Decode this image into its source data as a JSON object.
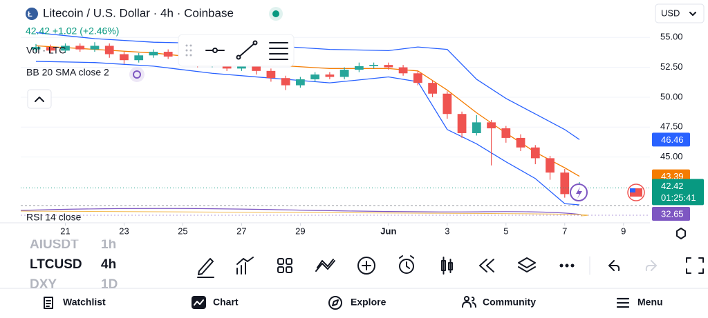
{
  "header": {
    "title": "Litecoin / U.S. Dollar · 4h · Coinbase",
    "quote": "42.42 +1.02 (+2.46%)",
    "currency": "USD"
  },
  "indicators": [
    "Vol · LTC",
    "BB 20 SMA close 2",
    "RSI 14 close"
  ],
  "chart_data": {
    "type": "candlestick",
    "x": [
      0,
      0.5,
      1,
      1.5,
      2,
      2.5,
      3,
      3.5,
      4,
      4.5,
      5,
      5.5,
      6,
      6.5,
      7,
      7.5,
      8,
      8.5,
      9,
      9.5,
      10,
      10.5,
      11,
      11.5,
      12,
      12.5,
      13,
      13.5,
      14,
      14.5,
      15,
      15.5,
      16,
      16.5,
      17,
      17.5,
      18,
      18.5
    ],
    "open": [
      54.0,
      54.2,
      53.9,
      54.3,
      54.0,
      54.3,
      53.6,
      53.1,
      53.5,
      53.8,
      53.4,
      53.3,
      52.7,
      52.8,
      52.4,
      52.6,
      52.2,
      51.6,
      51.0,
      51.5,
      51.9,
      51.7,
      52.3,
      52.6,
      52.7,
      52.5,
      52.0,
      51.2,
      50.3,
      48.6,
      47.0,
      47.9,
      47.4,
      46.6,
      45.8,
      44.9,
      43.7,
      41.9
    ],
    "high": [
      54.45,
      54.4,
      54.5,
      54.5,
      54.6,
      54.5,
      53.8,
      53.7,
      54.0,
      54.0,
      53.6,
      53.5,
      53.0,
      53.0,
      52.8,
      52.8,
      52.4,
      51.8,
      51.7,
      52.1,
      52.1,
      52.5,
      52.9,
      52.9,
      52.9,
      52.7,
      52.2,
      51.4,
      50.5,
      48.8,
      48.5,
      48.1,
      47.6,
      46.9,
      46.0,
      45.1,
      44.0,
      42.9
    ],
    "low": [
      53.8,
      53.7,
      53.7,
      53.8,
      53.8,
      53.3,
      52.8,
      52.9,
      53.3,
      53.2,
      53.0,
      52.5,
      52.5,
      52.2,
      52.2,
      51.9,
      51.3,
      50.6,
      50.8,
      51.3,
      51.5,
      51.5,
      52.1,
      52.4,
      52.3,
      51.8,
      51.0,
      50.0,
      48.2,
      46.6,
      46.8,
      44.3,
      46.2,
      45.5,
      44.4,
      43.1,
      41.6,
      41.7
    ],
    "close": [
      54.2,
      53.9,
      54.3,
      54.0,
      54.3,
      53.6,
      53.1,
      53.5,
      53.8,
      53.4,
      53.3,
      52.7,
      52.8,
      52.4,
      52.6,
      52.2,
      51.6,
      51.0,
      51.5,
      51.9,
      51.7,
      52.3,
      52.6,
      52.7,
      52.5,
      52.0,
      51.2,
      50.3,
      48.6,
      47.0,
      47.9,
      47.4,
      46.6,
      45.8,
      44.9,
      43.7,
      41.9,
      42.42
    ],
    "up_color": "#26a69a",
    "down_color": "#ef5350",
    "bands_x": [
      0,
      2,
      4,
      6,
      8,
      10,
      12,
      13,
      14,
      15,
      16,
      17,
      18,
      18.5
    ],
    "bands": [
      {
        "color": "#2962ff",
        "values": [
          55.4,
          54.9,
          54.6,
          54.5,
          54.3,
          54.0,
          53.9,
          54.2,
          54.0,
          51.5,
          49.9,
          48.6,
          47.3,
          46.46
        ]
      },
      {
        "color": "#f57c00",
        "values": [
          54.3,
          54.0,
          53.7,
          53.2,
          52.7,
          52.4,
          52.4,
          52.2,
          50.6,
          48.7,
          47.0,
          45.4,
          44.1,
          43.39
        ]
      },
      {
        "color": "#2962ff",
        "values": [
          53.0,
          52.9,
          52.6,
          52.0,
          51.6,
          51.2,
          51.7,
          51.3,
          47.3,
          46.1,
          44.6,
          43.2,
          41.1,
          41.0
        ]
      }
    ],
    "xlim": [
      0,
      20.9
    ],
    "ylim": [
      41,
      56.4
    ],
    "xticks": [
      {
        "value": 1,
        "label": "21"
      },
      {
        "value": 3,
        "label": "23"
      },
      {
        "value": 5,
        "label": "25"
      },
      {
        "value": 7,
        "label": "27"
      },
      {
        "value": 9,
        "label": "29"
      },
      {
        "value": 12,
        "label": "Jun"
      },
      {
        "value": 14,
        "label": "3"
      },
      {
        "value": 16,
        "label": "5"
      },
      {
        "value": 18,
        "label": "7"
      },
      {
        "value": 20,
        "label": "9"
      }
    ],
    "yticks": [
      {
        "value": 45,
        "label": "45.00"
      },
      {
        "value": 47.5,
        "label": "47.50"
      },
      {
        "value": 50,
        "label": "50.00"
      },
      {
        "value": 52.5,
        "label": "52.50"
      },
      {
        "value": 55,
        "label": "55.00"
      }
    ],
    "price_labels": [
      {
        "value": 46.46,
        "color": "#2962ff"
      },
      {
        "value": 43.39,
        "color": "#f57c00"
      }
    ],
    "last_price": {
      "value": 42.42,
      "timer": "01:25:41",
      "color": "#089981"
    },
    "rsi_label": {
      "value": 32.65,
      "color": "#7e57c2"
    }
  },
  "symbols": [
    {
      "symbol": "AIUSDT",
      "interval": "1h"
    },
    {
      "symbol": "LTCUSD",
      "interval": "4h"
    },
    {
      "symbol": "DXY",
      "interval": "1D"
    }
  ],
  "nav": [
    "Watchlist",
    "Chart",
    "Explore",
    "Community",
    "Menu"
  ]
}
